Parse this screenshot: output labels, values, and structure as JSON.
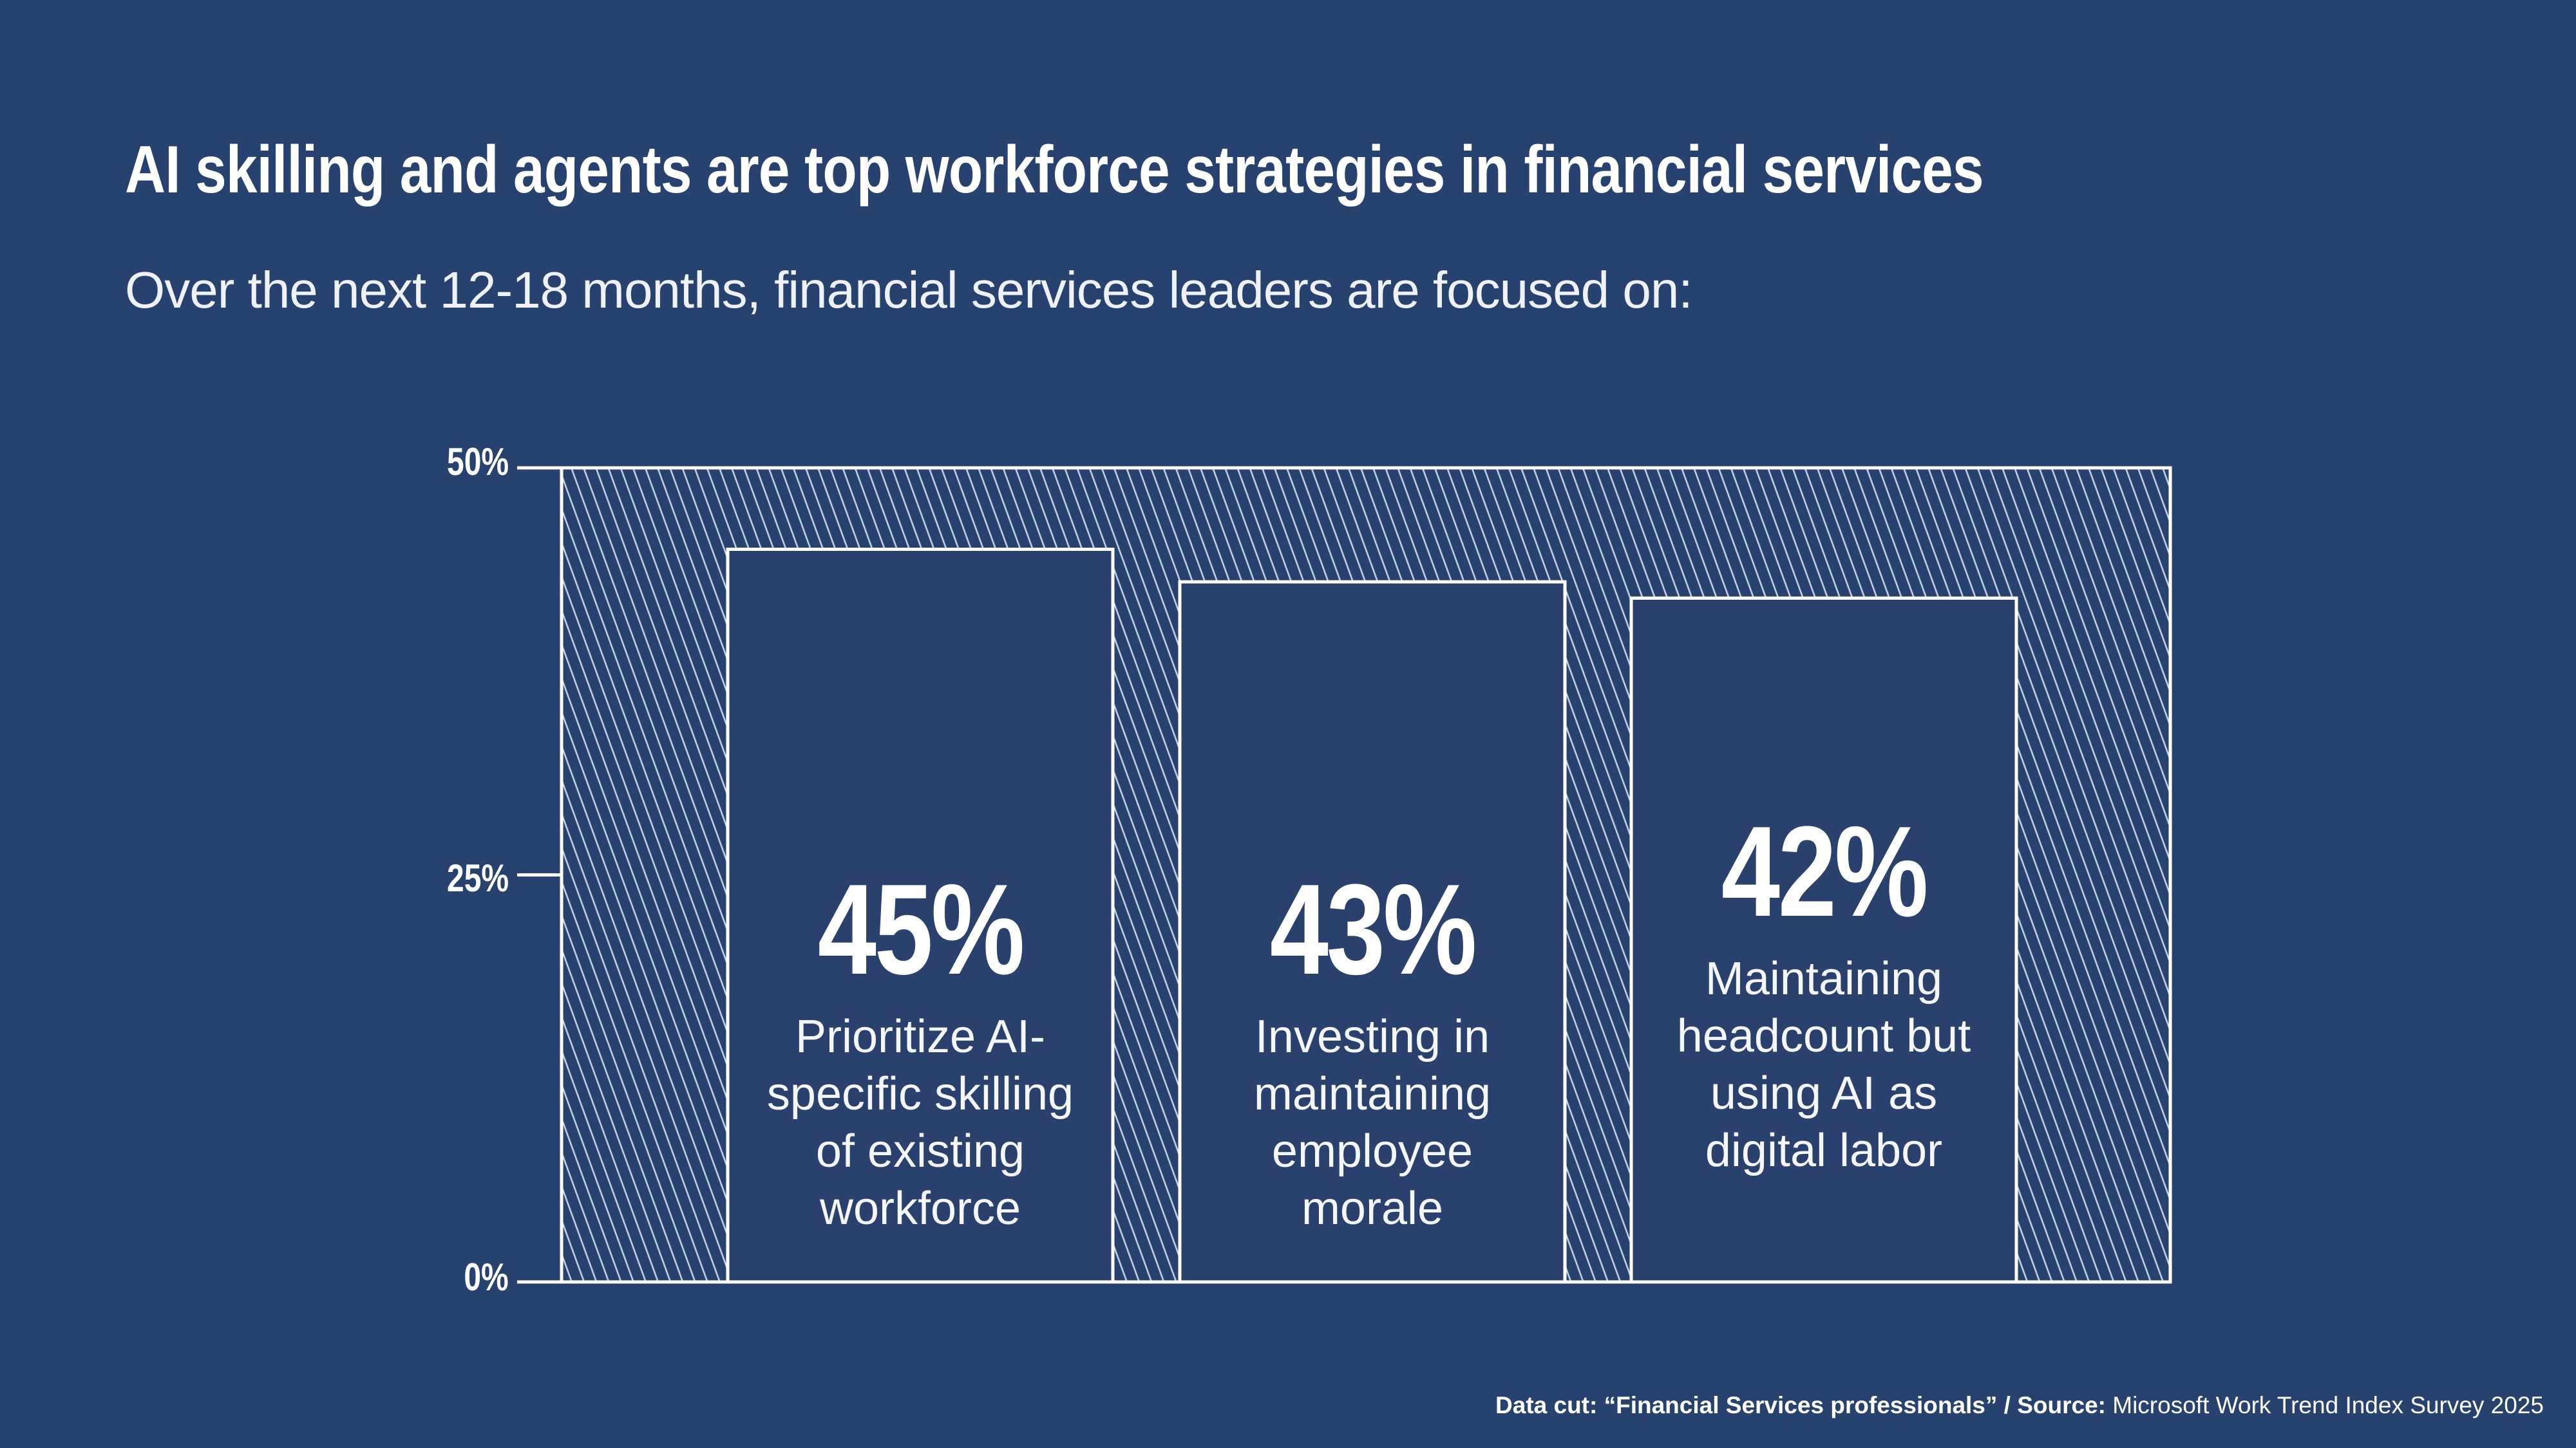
{
  "title": "AI skilling and agents are top workforce strategies in financial services",
  "subtitle": "Over the next 12-18 months, financial services leaders are focused on:",
  "colors": {
    "background": "#27426f",
    "bar_fill": "#2a416d",
    "outline": "#ffffff",
    "hatch": "#c8d2e4"
  },
  "chart_data": {
    "type": "bar",
    "categories": [
      "Prioritize AI-specific skilling of existing workforce",
      "Investing in maintaining employee morale",
      "Maintaining headcount but using AI as digital labor"
    ],
    "values": [
      45,
      43,
      42
    ],
    "data_labels": [
      "45%",
      "43%",
      "42%"
    ],
    "ylim": [
      0,
      50
    ],
    "yticks": [
      0,
      25,
      50
    ],
    "ytick_labels": [
      "0%",
      "25%",
      "50%"
    ],
    "background_bar": "hatched 50% frame",
    "grid": false,
    "title": "",
    "xlabel": "",
    "ylabel": ""
  },
  "bar_text": [
    {
      "pct": "45%",
      "lines": [
        "Prioritize AI-",
        "specific skilling",
        "of existing",
        "workforce"
      ]
    },
    {
      "pct": "43%",
      "lines": [
        "Investing in",
        "maintaining",
        "employee",
        "morale"
      ]
    },
    {
      "pct": "42%",
      "lines": [
        "Maintaining",
        "headcount but",
        "using AI as",
        "digital labor"
      ]
    }
  ],
  "footer": {
    "datacut_label": "Data cut:",
    "datacut_value": "“Financial Services professionals” /",
    "source_label": "Source:",
    "source_value": "Microsoft Work Trend Index Survey 2025"
  }
}
